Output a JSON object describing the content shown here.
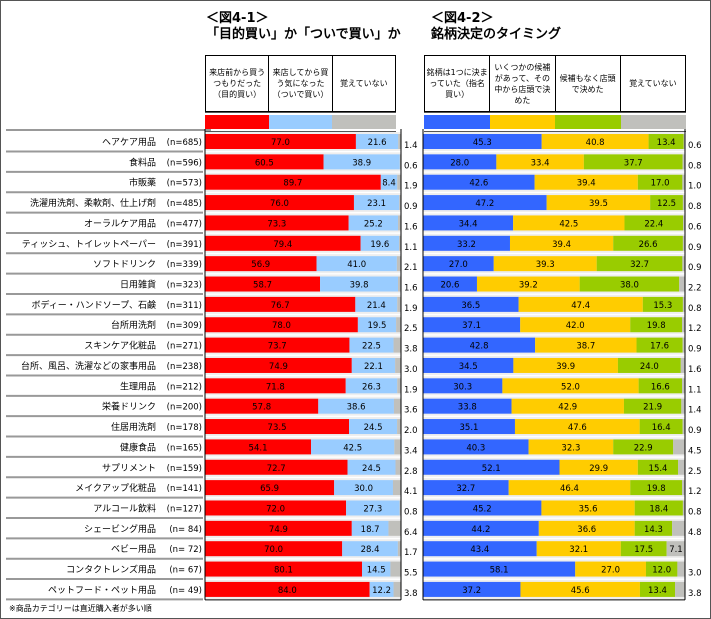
{
  "chart_data": [
    {
      "type": "bar",
      "orientation": "horizontal",
      "stacked": true,
      "unit": "%",
      "title_line1": "＜図4-1＞",
      "title_line2": "「目的買い」か「ついで買い」か",
      "legend_position": "top",
      "series": [
        {
          "name": "来店前から買うつもりだった（目的買い）",
          "color": "#ff0000",
          "values": [
            77.0,
            60.5,
            89.7,
            76.0,
            73.3,
            79.4,
            56.9,
            58.7,
            76.7,
            78.0,
            73.7,
            74.9,
            71.8,
            57.8,
            73.5,
            54.1,
            72.7,
            65.9,
            72.0,
            74.9,
            70.0,
            80.1,
            84.0
          ]
        },
        {
          "name": "来店してから買う気になった（ついで買い）",
          "color": "#99ccff",
          "values": [
            21.6,
            38.9,
            8.4,
            23.1,
            25.2,
            19.6,
            41.0,
            39.8,
            21.4,
            19.5,
            22.5,
            22.1,
            26.3,
            38.6,
            24.5,
            42.5,
            24.5,
            30.0,
            27.3,
            18.7,
            28.4,
            14.5,
            12.2
          ]
        },
        {
          "name": "覚えていない",
          "color": "#c0c0bc",
          "values": [
            1.4,
            0.6,
            1.9,
            0.9,
            1.6,
            1.1,
            2.1,
            1.6,
            1.9,
            2.5,
            3.8,
            3.0,
            1.9,
            3.6,
            2.0,
            3.4,
            2.8,
            4.1,
            0.8,
            6.4,
            1.7,
            5.5,
            3.8
          ]
        }
      ]
    },
    {
      "type": "bar",
      "orientation": "horizontal",
      "stacked": true,
      "unit": "%",
      "title_line1": "＜図4-2＞",
      "title_line2": "銘柄決定のタイミング",
      "legend_position": "top",
      "series": [
        {
          "name": "銘柄は1つに決まっていた（指名買い）",
          "color": "#3366ff",
          "values": [
            45.3,
            28.0,
            42.6,
            47.2,
            34.4,
            33.2,
            27.0,
            20.6,
            36.5,
            37.1,
            42.8,
            34.5,
            30.3,
            33.8,
            35.1,
            40.3,
            52.1,
            32.7,
            45.2,
            44.2,
            43.4,
            58.1,
            37.2
          ]
        },
        {
          "name": "いくつかの候補があって、その中から店頭で決めた",
          "color": "#ffcc00",
          "values": [
            40.8,
            33.4,
            39.4,
            39.5,
            42.5,
            39.4,
            39.3,
            39.2,
            47.4,
            42.0,
            38.7,
            39.9,
            52.0,
            42.9,
            47.6,
            32.3,
            29.9,
            46.4,
            35.6,
            36.6,
            32.1,
            27.0,
            45.6
          ]
        },
        {
          "name": "候補もなく店頭で決めた",
          "color": "#99cc00",
          "values": [
            13.4,
            37.7,
            17.0,
            12.5,
            22.4,
            26.6,
            32.7,
            38.0,
            15.3,
            19.8,
            17.6,
            24.0,
            16.6,
            21.9,
            16.4,
            22.9,
            15.4,
            19.8,
            18.4,
            14.3,
            17.5,
            12.0,
            13.4
          ]
        },
        {
          "name": "覚えていない",
          "color": "#c0c0bc",
          "values": [
            0.6,
            0.8,
            1.0,
            0.8,
            0.6,
            0.9,
            0.9,
            2.2,
            0.8,
            1.2,
            0.9,
            1.6,
            1.1,
            1.4,
            0.9,
            4.5,
            2.5,
            1.2,
            0.8,
            4.8,
            7.1,
            3.0,
            3.8
          ]
        }
      ]
    }
  ],
  "categories": [
    "ヘアケア用品",
    "食料品",
    "市販薬",
    "洗濯用洗剤、柔軟剤、仕上げ剤",
    "オーラルケア用品",
    "ティッシュ、トイレットペーパー",
    "ソフトドリンク",
    "日用雑貨",
    "ボディー・ハンドソープ、石鹸",
    "台所用洗剤",
    "スキンケア化粧品",
    "台所、風呂、洗濯などの家事用品",
    "生理用品",
    "栄養ドリンク",
    "住居用洗剤",
    "健康食品",
    "サプリメント",
    "メイクアップ化粧品",
    "アルコール飲料",
    "シェービング用品",
    "ベビー用品",
    "コンタクトレンズ用品",
    "ペットフード・ペット用品"
  ],
  "n_labels": [
    "(n=685)",
    "(n=596)",
    "(n=573)",
    "(n=485)",
    "(n=477)",
    "(n=391)",
    "(n=339)",
    "(n=323)",
    "(n=311)",
    "(n=309)",
    "(n=271)",
    "(n=238)",
    "(n=212)",
    "(n=200)",
    "(n=178)",
    "(n=165)",
    "(n=159)",
    "(n=141)",
    "(n=127)",
    "(n= 84)",
    "(n= 72)",
    "(n= 67)",
    "(n= 49)"
  ],
  "note": "※商品カテゴリーは直近購入者が多い順"
}
